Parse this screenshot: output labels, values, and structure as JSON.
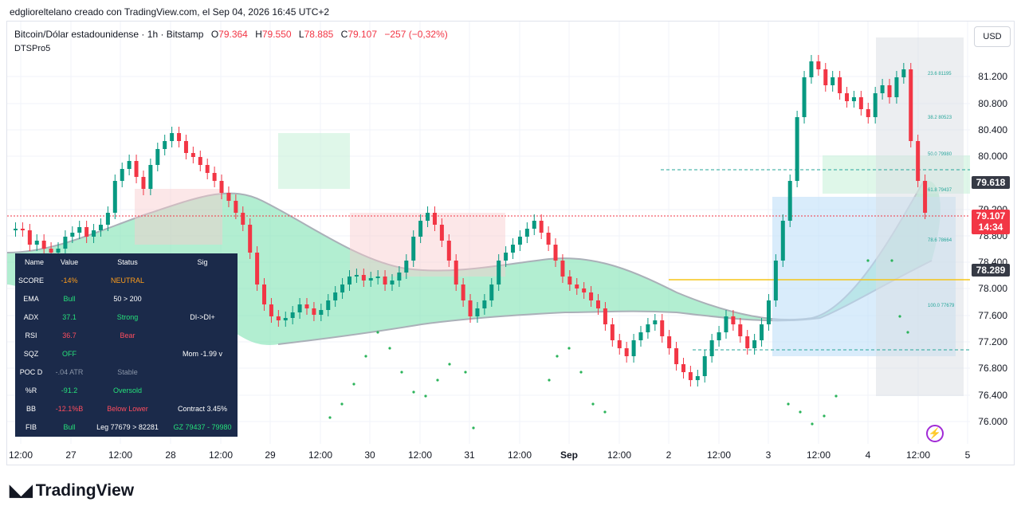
{
  "header": {
    "creator": "edglioreltelano creado con TradingView.com, el Sep 04, 2026 16:45 UTC+2"
  },
  "legend": {
    "symbol": "Bitcoin/Dólar estadounidense · 1h · Bitstamp",
    "o_label": "O",
    "o_value": "79.364",
    "h_label": "H",
    "h_value": "79.550",
    "l_label": "L",
    "l_value": "78.885",
    "c_label": "C",
    "c_value": "79.107",
    "change": "−257 (−0,32%)",
    "indicator": "DTSPro5"
  },
  "currency_button": "USD",
  "price_axis": {
    "ticks": [
      "81.200",
      "80.800",
      "80.400",
      "80.000",
      "79.200",
      "78.800",
      "78.400",
      "78.000",
      "77.600",
      "77.200",
      "76.800",
      "76.400",
      "76.000"
    ],
    "tag_level": "79.618",
    "tag_last": "79.107",
    "tag_countdown": "14:34",
    "tag_low": "78.289"
  },
  "time_axis": {
    "ticks": [
      "12:00",
      "27",
      "12:00",
      "28",
      "12:00",
      "29",
      "12:00",
      "30",
      "12:00",
      "31",
      "12:00",
      "Sep",
      "12:00",
      "2",
      "12:00",
      "3",
      "12:00",
      "4",
      "12:00",
      "5"
    ]
  },
  "fib_labels": [
    "23.6  81195",
    "38.2  80523",
    "50.0  79980",
    "61.8  79437",
    "78.6  78664",
    "100.0  77679"
  ],
  "table": {
    "headers": [
      "Name",
      "Value",
      "Status",
      "Sig"
    ],
    "rows": [
      {
        "name": "SCORE",
        "value": "-14%",
        "status": "NEUTRAL",
        "sig": ""
      },
      {
        "name": "EMA",
        "value": "Bull",
        "status": "50 > 200",
        "sig": ""
      },
      {
        "name": "ADX",
        "value": "37.1",
        "status": "Strong",
        "sig": "DI->DI+"
      },
      {
        "name": "RSI",
        "value": "36.7",
        "status": "Bear",
        "sig": ""
      },
      {
        "name": "SQZ",
        "value": "OFF",
        "status": "",
        "sig": "Mom -1.99 v"
      },
      {
        "name": "POC D",
        "value": "-.04 ATR",
        "status": "Stable",
        "sig": ""
      },
      {
        "name": "%R",
        "value": "-91.2",
        "status": "Oversold",
        "sig": ""
      },
      {
        "name": "BB",
        "value": "-12.1%B",
        "status": "Below Lower",
        "sig": "Contract 3.45%"
      },
      {
        "name": "FIB",
        "value": "Bull",
        "status": "Leg 77679 > 82281",
        "sig": "GZ 79437 - 79980"
      }
    ]
  },
  "colors": {
    "up": "#089981",
    "down": "#f23645",
    "accent": "#2962ff"
  },
  "branding": {
    "logo_text": "TradingView"
  }
}
